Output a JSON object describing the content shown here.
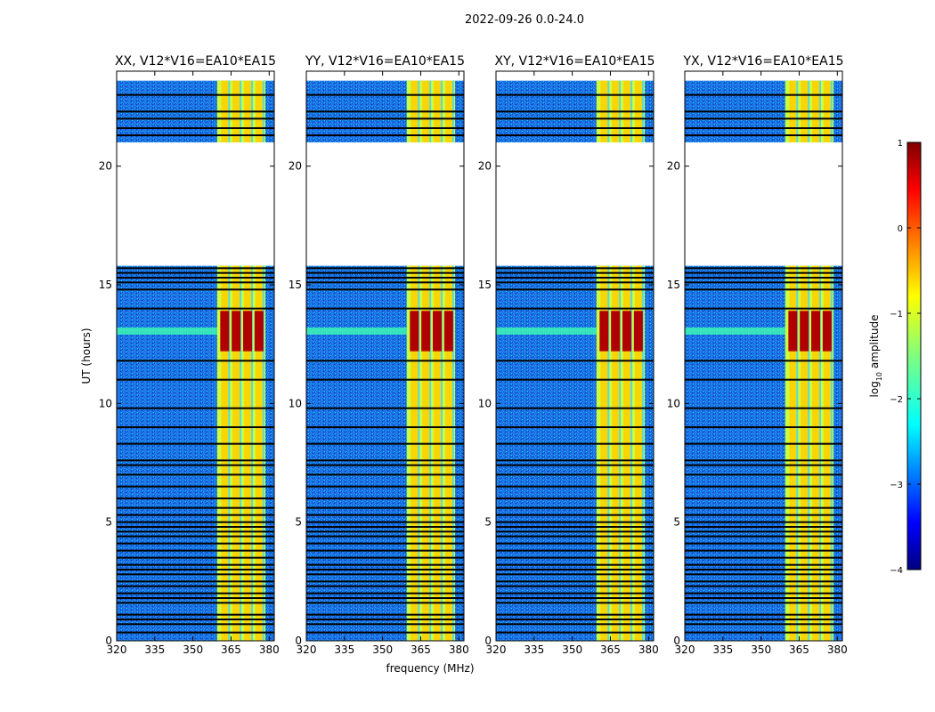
{
  "figure_title": "2022-09-26 0.0-24.0",
  "chart_data": {
    "type": "heatmap",
    "title": "2022-09-26 0.0-24.0",
    "xlabel": "frequency (MHz)",
    "ylabel": "UT (hours)",
    "xlim": [
      320,
      382
    ],
    "ylim": [
      0,
      24
    ],
    "xticks": [
      "320",
      "335",
      "350",
      "365",
      "380"
    ],
    "xtick_values": [
      320,
      335,
      350,
      365,
      380
    ],
    "yticks": [
      "0",
      "5",
      "10",
      "15",
      "20"
    ],
    "ytick_values": [
      0,
      5,
      10,
      15,
      20
    ],
    "panels": [
      {
        "title": "XX, V12*V16=EA10*EA15",
        "strong_band": [
          12.2,
          13.9
        ]
      },
      {
        "title": "YY, V12*V16=EA10*EA15",
        "strong_band": [
          12.2,
          13.9
        ]
      },
      {
        "title": "XY, V12*V16=EA10*EA15",
        "strong_band": [
          12.2,
          13.9
        ]
      },
      {
        "title": "YX, V12*V16=EA10*EA15",
        "strong_band": [
          12.2,
          13.9
        ]
      }
    ],
    "data_hours": [
      [
        0.0,
        15.8
      ],
      [
        21.0,
        23.6
      ]
    ],
    "gap_hours": [
      [
        15.8,
        21.0
      ]
    ],
    "rfi_band_mhz": [
      359.5,
      378.5
    ],
    "rfi_channels_mhz": [
      362.5,
      367.0,
      371.5,
      376.0
    ],
    "flag_lines_hours": [
      0.35,
      0.7,
      0.9,
      1.1,
      1.6,
      1.8,
      2.0,
      2.3,
      2.5,
      2.8,
      3.0,
      3.2,
      3.5,
      3.8,
      4.1,
      4.4,
      4.6,
      4.8,
      5.0,
      5.3,
      5.6,
      6.0,
      6.5,
      7.0,
      7.4,
      7.6,
      8.3,
      9.0,
      9.8,
      11.0,
      11.8,
      14.0,
      14.8,
      15.1,
      15.3,
      15.5,
      15.7,
      21.3,
      21.6,
      22.0,
      22.3,
      23.0
    ],
    "colorbar": {
      "label": "log10 amplitude",
      "label_main": "log",
      "label_sub": "10",
      "label_rest": " amplitude",
      "range": [
        -4,
        1
      ],
      "ticks": [
        "1",
        "0",
        "−1",
        "−2",
        "−3",
        "−4"
      ],
      "tick_values": [
        1,
        0,
        -1,
        -2,
        -3,
        -4
      ],
      "colormap": "jet"
    }
  }
}
